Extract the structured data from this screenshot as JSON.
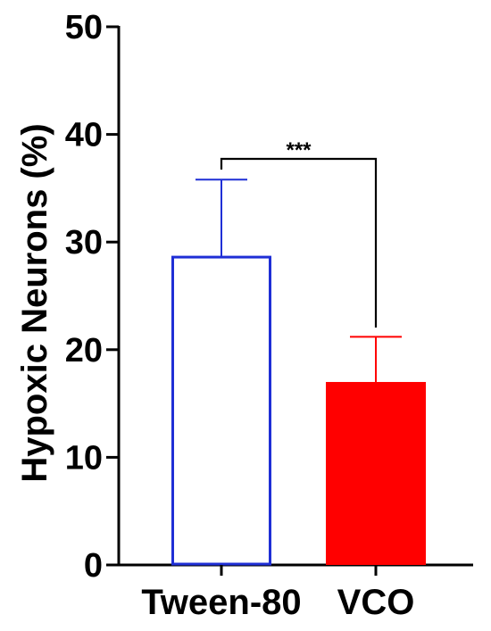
{
  "chart_data": {
    "type": "bar",
    "categories": [
      "Tween-80",
      "VCO"
    ],
    "values": [
      28.6,
      17.0
    ],
    "errors": [
      7.2,
      4.2
    ],
    "colors": {
      "Tween-80": {
        "stroke": "#1f2fd6",
        "fill": "#ffffff"
      },
      "VCO": {
        "stroke": "#ff0000",
        "fill": "#ff0000"
      }
    },
    "ylabel": "Hypoxic Neurons (%)",
    "ylim": [
      0,
      50
    ],
    "yticks": [
      0,
      10,
      20,
      30,
      40,
      50
    ],
    "yticklabels": [
      "0",
      "10",
      "20",
      "30",
      "40",
      "50"
    ],
    "grid": false,
    "significance": {
      "pair": [
        "Tween-80",
        "VCO"
      ],
      "label": "***"
    }
  }
}
